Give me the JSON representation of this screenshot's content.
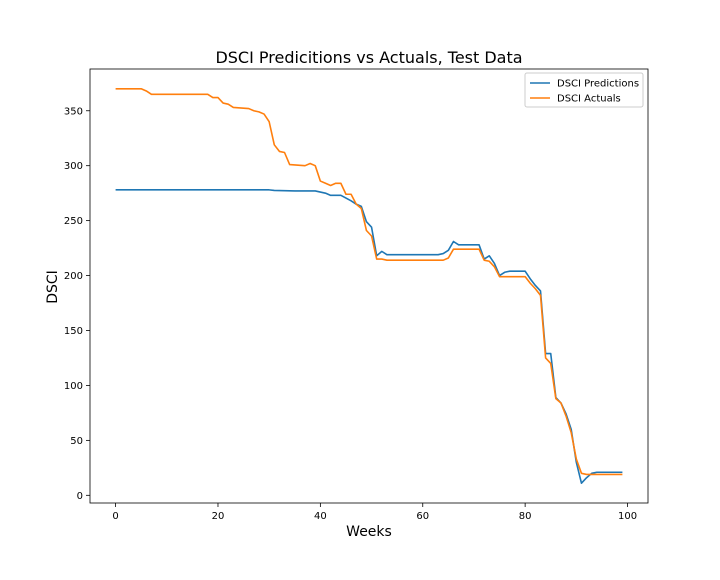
{
  "colors": {
    "predictions": "#1f77b4",
    "actuals": "#ff7f0e",
    "axis": "#000000",
    "legend_border": "#cccccc",
    "background": "#ffffff"
  },
  "chart_data": {
    "type": "line",
    "title": "DSCI Predicitions vs Actuals, Test Data",
    "xlabel": "Weeks",
    "ylabel": "DSCI",
    "xlim": [
      -5,
      104
    ],
    "ylim": [
      -7,
      388
    ],
    "xticks": [
      0,
      20,
      40,
      60,
      80,
      100
    ],
    "yticks": [
      0,
      50,
      100,
      150,
      200,
      250,
      300,
      350
    ],
    "grid": false,
    "legend_position": "top-right",
    "series": [
      {
        "name": "DSCI Predictions",
        "color": "#1f77b4",
        "points": [
          [
            0,
            278
          ],
          [
            10,
            278
          ],
          [
            20,
            278
          ],
          [
            30,
            278
          ],
          [
            31,
            277.5
          ],
          [
            35,
            277
          ],
          [
            39,
            277
          ],
          [
            41,
            275
          ],
          [
            42,
            273
          ],
          [
            44,
            273
          ],
          [
            46,
            268
          ],
          [
            47,
            265
          ],
          [
            48,
            263
          ],
          [
            49,
            249
          ],
          [
            50,
            244
          ],
          [
            51,
            218
          ],
          [
            52,
            222
          ],
          [
            53,
            219
          ],
          [
            63,
            219
          ],
          [
            64,
            220
          ],
          [
            65,
            223
          ],
          [
            66,
            231
          ],
          [
            67,
            228
          ],
          [
            71,
            228
          ],
          [
            72,
            215
          ],
          [
            73,
            218
          ],
          [
            74,
            211
          ],
          [
            75,
            200
          ],
          [
            76,
            203
          ],
          [
            77,
            204
          ],
          [
            80,
            204
          ],
          [
            81,
            197
          ],
          [
            82,
            191
          ],
          [
            83,
            186
          ],
          [
            84,
            129
          ],
          [
            85,
            129
          ],
          [
            86,
            89
          ],
          [
            87,
            84
          ],
          [
            88,
            74
          ],
          [
            89,
            60
          ],
          [
            90,
            30
          ],
          [
            91,
            11
          ],
          [
            92,
            16
          ],
          [
            93,
            20
          ],
          [
            94,
            21
          ],
          [
            99,
            21
          ]
        ]
      },
      {
        "name": "DSCI Actuals",
        "color": "#ff7f0e",
        "points": [
          [
            0,
            370
          ],
          [
            5,
            370
          ],
          [
            6,
            368
          ],
          [
            7,
            365
          ],
          [
            18,
            365
          ],
          [
            19,
            362
          ],
          [
            20,
            362
          ],
          [
            21,
            357
          ],
          [
            22,
            356
          ],
          [
            23,
            353
          ],
          [
            26,
            352
          ],
          [
            27,
            350
          ],
          [
            28,
            349
          ],
          [
            29,
            347
          ],
          [
            30,
            340
          ],
          [
            31,
            319
          ],
          [
            32,
            313
          ],
          [
            33,
            312
          ],
          [
            34,
            301
          ],
          [
            37,
            300
          ],
          [
            38,
            302
          ],
          [
            39,
            300
          ],
          [
            40,
            286
          ],
          [
            41,
            284
          ],
          [
            42,
            282
          ],
          [
            43,
            284
          ],
          [
            44,
            284
          ],
          [
            45,
            274
          ],
          [
            46,
            274
          ],
          [
            47,
            265
          ],
          [
            48,
            261
          ],
          [
            49,
            241
          ],
          [
            50,
            236
          ],
          [
            51,
            215
          ],
          [
            52,
            215
          ],
          [
            53,
            214
          ],
          [
            64,
            214
          ],
          [
            65,
            216
          ],
          [
            66,
            224
          ],
          [
            71,
            224
          ],
          [
            72,
            214
          ],
          [
            73,
            213
          ],
          [
            74,
            208
          ],
          [
            75,
            199
          ],
          [
            80,
            199
          ],
          [
            81,
            193
          ],
          [
            82,
            188
          ],
          [
            83,
            182
          ],
          [
            84,
            125
          ],
          [
            85,
            120
          ],
          [
            86,
            88
          ],
          [
            87,
            84
          ],
          [
            88,
            72
          ],
          [
            89,
            57
          ],
          [
            90,
            33
          ],
          [
            91,
            20
          ],
          [
            92,
            19
          ],
          [
            99,
            19
          ]
        ]
      }
    ]
  }
}
